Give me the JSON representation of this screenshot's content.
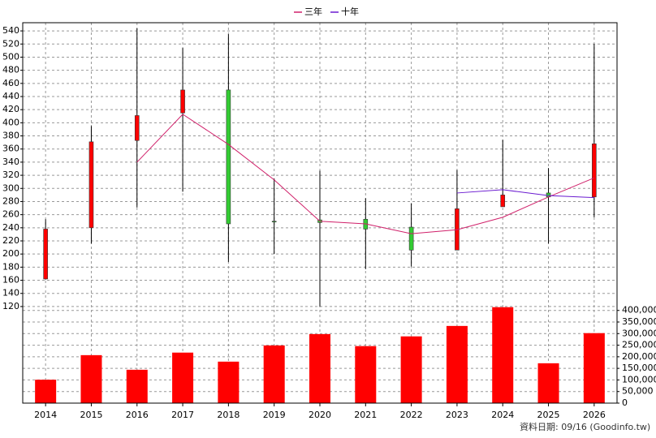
{
  "chart_data": {
    "type": "candlestick",
    "categories": [
      "2014",
      "2015",
      "2016",
      "2017",
      "2018",
      "2019",
      "2020",
      "2021",
      "2022",
      "2023",
      "2024",
      "2025",
      "2026"
    ],
    "open": [
      162,
      240,
      373,
      415,
      450,
      250,
      252,
      253,
      241,
      206,
      272,
      293,
      287
    ],
    "high": [
      253,
      395,
      544,
      514,
      535,
      315,
      327,
      285,
      277,
      328,
      374,
      331,
      520
    ],
    "low": [
      161,
      216,
      271,
      295,
      188,
      200,
      120,
      177,
      181,
      206,
      272,
      216,
      256
    ],
    "close": [
      238,
      371,
      411,
      450,
      246,
      249,
      248,
      238,
      206,
      269,
      290,
      287,
      368
    ],
    "up_color": "#ff0000",
    "down_color": "#33cc33",
    "ylim": [
      110,
      550
    ],
    "yticks": [
      120,
      140,
      160,
      180,
      200,
      220,
      240,
      260,
      280,
      300,
      320,
      340,
      360,
      380,
      400,
      420,
      440,
      460,
      480,
      500,
      520,
      540
    ],
    "grid": true,
    "series": [
      {
        "name": "三年",
        "color": "#d0206a",
        "values": [
          null,
          null,
          340,
          413,
          367,
          313,
          250,
          246,
          231,
          237,
          256,
          287,
          316
        ]
      },
      {
        "name": "十年",
        "color": "#6a1ad0",
        "values": [
          null,
          null,
          null,
          null,
          null,
          null,
          null,
          null,
          null,
          293,
          298,
          289,
          286
        ]
      }
    ],
    "volume": {
      "color": "#ff0000",
      "values": [
        101000,
        207000,
        144000,
        218000,
        179000,
        249000,
        298000,
        246000,
        288000,
        333000,
        414000,
        172000,
        302000
      ],
      "ylim": [
        0,
        420000
      ],
      "yticks": [
        0,
        {
          "value": 50000,
          "label": "50,000"
        },
        {
          "value": 100000,
          "label": "100,000"
        },
        {
          "value": 150000,
          "label": "150,000"
        },
        {
          "value": 200000,
          "label": "200,000"
        },
        {
          "value": 250000,
          "label": "250,000"
        },
        {
          "value": 300000,
          "label": "300,000"
        },
        {
          "value": 350000,
          "label": "350,000"
        },
        {
          "value": 400000,
          "label": "400,000"
        }
      ]
    },
    "footnote": "資料日期: 09/16  (Goodinfo.tw)"
  }
}
